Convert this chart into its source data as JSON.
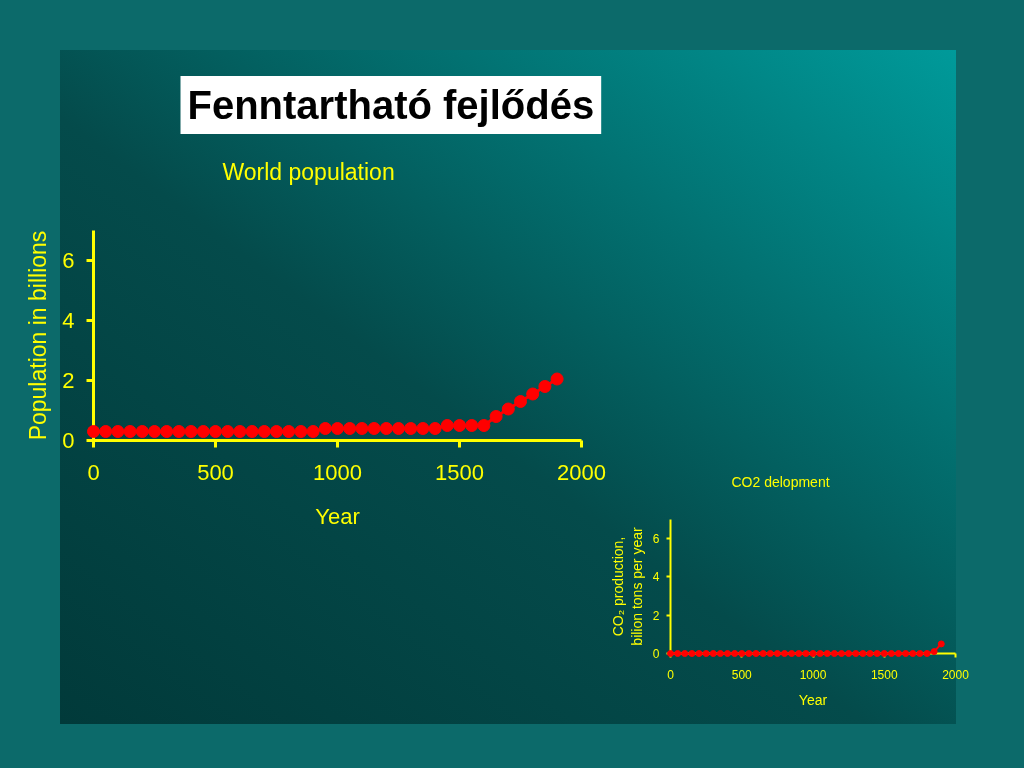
{
  "chart_data": [
    {
      "type": "line",
      "title": "Fenntartható fejlődés",
      "subtitle": "World population",
      "xlabel": "Year",
      "ylabel": "Population in billions",
      "x": [
        0,
        50,
        100,
        150,
        200,
        250,
        300,
        350,
        400,
        450,
        500,
        550,
        600,
        650,
        700,
        750,
        800,
        850,
        900,
        950,
        1000,
        1050,
        1100,
        1150,
        1200,
        1250,
        1300,
        1350,
        1400,
        1450,
        1500,
        1550,
        1600,
        1650,
        1700,
        1750,
        1800,
        1850,
        1900
      ],
      "series": [
        {
          "color": "#ff0000",
          "values": [
            0.3,
            0.3,
            0.3,
            0.3,
            0.3,
            0.3,
            0.3,
            0.3,
            0.3,
            0.3,
            0.3,
            0.3,
            0.3,
            0.3,
            0.3,
            0.3,
            0.3,
            0.3,
            0.3,
            0.4,
            0.4,
            0.4,
            0.4,
            0.4,
            0.4,
            0.4,
            0.4,
            0.4,
            0.4,
            0.5,
            0.5,
            0.5,
            0.5,
            0.8,
            1.05,
            1.3,
            1.55,
            1.8,
            2.05
          ]
        }
      ],
      "xlim": [
        0,
        2000
      ],
      "ylim": [
        0,
        7
      ],
      "xticks": [
        0,
        500,
        1000,
        1500,
        2000
      ],
      "yticks": [
        0,
        2,
        4,
        6
      ],
      "marker": "circle",
      "line_style": "solid"
    },
    {
      "type": "line",
      "title": "CO2 delopment",
      "xlabel": "Year",
      "ylabel": "CO₂ production,\nbilion tons per year",
      "x": [
        0,
        50,
        100,
        150,
        200,
        250,
        300,
        350,
        400,
        450,
        500,
        550,
        600,
        650,
        700,
        750,
        800,
        850,
        900,
        950,
        1000,
        1050,
        1100,
        1150,
        1200,
        1250,
        1300,
        1350,
        1400,
        1450,
        1500,
        1550,
        1600,
        1650,
        1700,
        1750,
        1800,
        1850,
        1900
      ],
      "series": [
        {
          "color": "#ff0000",
          "values": [
            0,
            0,
            0,
            0,
            0,
            0,
            0,
            0,
            0,
            0,
            0,
            0,
            0,
            0,
            0,
            0,
            0,
            0,
            0,
            0,
            0,
            0,
            0,
            0,
            0,
            0,
            0,
            0,
            0,
            0,
            0,
            0,
            0,
            0,
            0,
            0,
            0,
            0.1,
            0.5
          ]
        }
      ],
      "xlim": [
        0,
        2000
      ],
      "ylim": [
        0,
        7
      ],
      "xticks": [
        0,
        500,
        1000,
        1500,
        2000
      ],
      "yticks": [
        0,
        2,
        4,
        6
      ],
      "marker": "circle",
      "line_style": "solid"
    }
  ]
}
